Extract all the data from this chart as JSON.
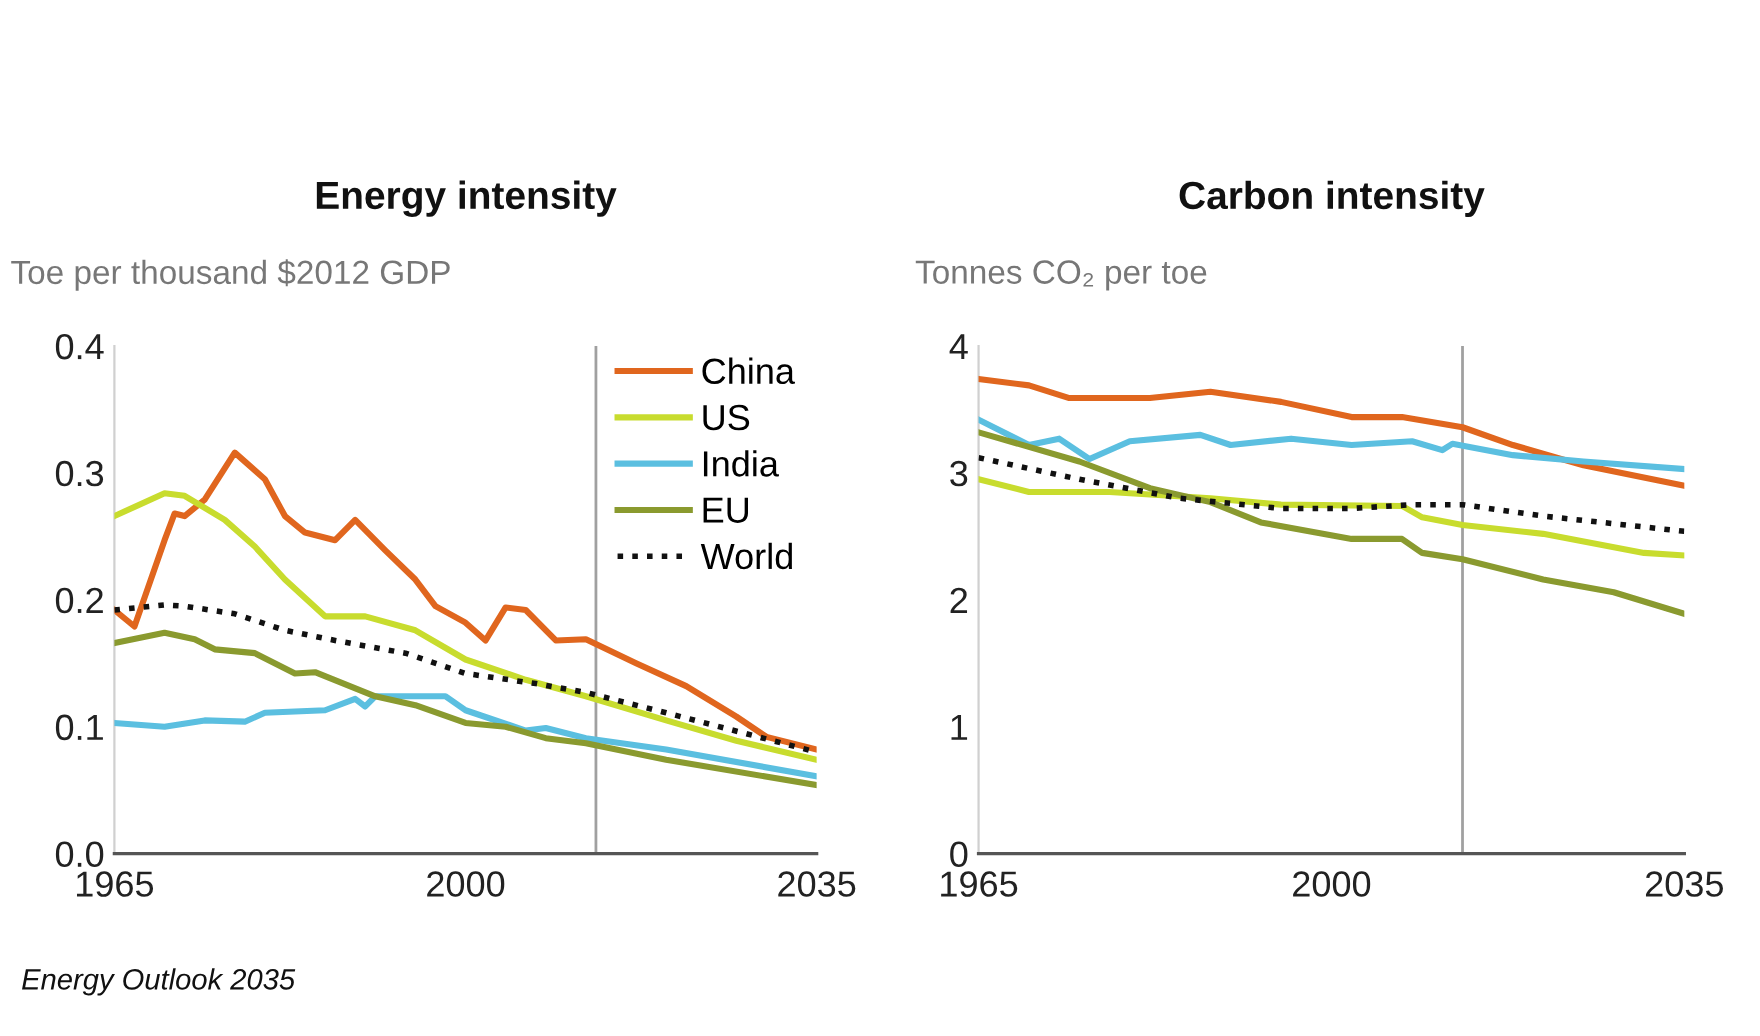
{
  "chart_data": [
    {
      "type": "line",
      "title": "Energy intensity",
      "ylabel": "Toe per thousand $2012 GDP",
      "xlim": [
        1965,
        2035
      ],
      "xticks": [
        1965,
        2000,
        2035
      ],
      "ylim": [
        0,
        0.4
      ],
      "yticks": [
        {
          "value": 0,
          "label": "0.0"
        },
        0.1,
        0.2,
        0.3,
        0.4
      ],
      "grid": false,
      "legend": "top right",
      "ref_lines": [
        {
          "axis": "x",
          "value": 2013,
          "color": "#a0a0a0"
        }
      ],
      "annotations": [
        "Energy Outlook 2035"
      ],
      "series": [
        {
          "name": "China",
          "color": "#e0661e",
          "x": [
            1965,
            1967,
            1970,
            1971,
            1972,
            1974,
            1977,
            1980,
            1982,
            1984,
            1987,
            1989,
            1992,
            1995,
            1997,
            2000,
            2002,
            2004,
            2006,
            2009,
            2012,
            2017,
            2022,
            2027,
            2030,
            2035
          ],
          "values": [
            0.192,
            0.179,
            0.247,
            0.268,
            0.266,
            0.279,
            0.316,
            0.295,
            0.266,
            0.253,
            0.247,
            0.263,
            0.239,
            0.216,
            0.195,
            0.182,
            0.168,
            0.194,
            0.192,
            0.168,
            0.169,
            0.15,
            0.132,
            0.108,
            0.092,
            0.082
          ]
        },
        {
          "name": "US",
          "color": "#c8dc2e",
          "x": [
            1965,
            1970,
            1972,
            1976,
            1979,
            1982,
            1986,
            1990,
            1995,
            2000,
            2006,
            2012,
            2020,
            2027,
            2035
          ],
          "values": [
            0.266,
            0.284,
            0.282,
            0.263,
            0.242,
            0.216,
            0.187,
            0.187,
            0.176,
            0.153,
            0.137,
            0.124,
            0.105,
            0.089,
            0.074
          ]
        },
        {
          "name": "India",
          "color": "#5bbfe0",
          "x": [
            1965,
            1970,
            1974,
            1978,
            1980,
            1986,
            1989,
            1990,
            1991,
            1996,
            1998,
            2000,
            2006,
            2008,
            2012,
            2020,
            2035
          ],
          "values": [
            0.103,
            0.1,
            0.105,
            0.104,
            0.111,
            0.113,
            0.122,
            0.116,
            0.124,
            0.124,
            0.124,
            0.113,
            0.097,
            0.099,
            0.091,
            0.082,
            0.061
          ]
        },
        {
          "name": "EU",
          "color": "#8a9a2f",
          "x": [
            1965,
            1970,
            1973,
            1975,
            1979,
            1983,
            1985,
            1991,
            1995,
            2000,
            2004,
            2008,
            2012,
            2020,
            2035
          ],
          "values": [
            0.166,
            0.174,
            0.169,
            0.161,
            0.158,
            0.142,
            0.143,
            0.124,
            0.117,
            0.103,
            0.1,
            0.091,
            0.087,
            0.074,
            0.054
          ]
        },
        {
          "name": "World",
          "color": "#111111",
          "line_style": "dotted",
          "x": [
            1965,
            1970,
            1972,
            1977,
            1982,
            1987,
            1994,
            2000,
            2007,
            2012,
            2020,
            2035
          ],
          "values": [
            0.192,
            0.196,
            0.195,
            0.189,
            0.176,
            0.168,
            0.158,
            0.142,
            0.134,
            0.127,
            0.111,
            0.08
          ]
        }
      ]
    },
    {
      "type": "line",
      "title": "Carbon intensity",
      "ylabel": "Tonnes CO₂ per toe",
      "xlim": [
        1965,
        2035
      ],
      "xticks": [
        1965,
        2000,
        2035
      ],
      "ylim": [
        0,
        4
      ],
      "yticks": [
        0,
        1,
        2,
        3,
        4
      ],
      "grid": false,
      "ref_lines": [
        {
          "axis": "x",
          "value": 2013,
          "color": "#a0a0a0"
        }
      ],
      "series": [
        {
          "color": "#e0661e",
          "x": [
            1965,
            1970,
            1974,
            1982,
            1988,
            1995,
            2002,
            2007,
            2013,
            2018,
            2025,
            2035
          ],
          "values": [
            3.74,
            3.69,
            3.59,
            3.59,
            3.64,
            3.56,
            3.44,
            3.44,
            3.36,
            3.22,
            3.06,
            2.9
          ]
        },
        {
          "color": "#c8dc2e",
          "x": [
            1965,
            1970,
            1978,
            1988,
            1995,
            2007,
            2009,
            2013,
            2021,
            2031,
            2035
          ],
          "values": [
            2.95,
            2.85,
            2.85,
            2.8,
            2.75,
            2.74,
            2.65,
            2.59,
            2.52,
            2.37,
            2.35
          ]
        },
        {
          "color": "#5bbfe0",
          "x": [
            1965,
            1970,
            1973,
            1976,
            1980,
            1987,
            1990,
            1996,
            2002,
            2008,
            2011,
            2012,
            2018,
            2025,
            2035
          ],
          "values": [
            3.42,
            3.22,
            3.27,
            3.11,
            3.25,
            3.3,
            3.22,
            3.27,
            3.22,
            3.25,
            3.18,
            3.23,
            3.14,
            3.09,
            3.03
          ]
        },
        {
          "color": "#8a9a2f",
          "x": [
            1965,
            1975,
            1982,
            1988,
            1993,
            2002,
            2007,
            2009,
            2013,
            2021,
            2028,
            2035
          ],
          "values": [
            3.32,
            3.09,
            2.88,
            2.77,
            2.61,
            2.48,
            2.48,
            2.37,
            2.32,
            2.16,
            2.06,
            1.89
          ]
        },
        {
          "color": "#111111",
          "line_style": "dotted",
          "x": [
            1965,
            1975,
            1985,
            1995,
            2002,
            2008,
            2013,
            2021,
            2035
          ],
          "values": [
            3.12,
            2.95,
            2.8,
            2.72,
            2.72,
            2.75,
            2.75,
            2.66,
            2.54
          ]
        }
      ]
    }
  ]
}
